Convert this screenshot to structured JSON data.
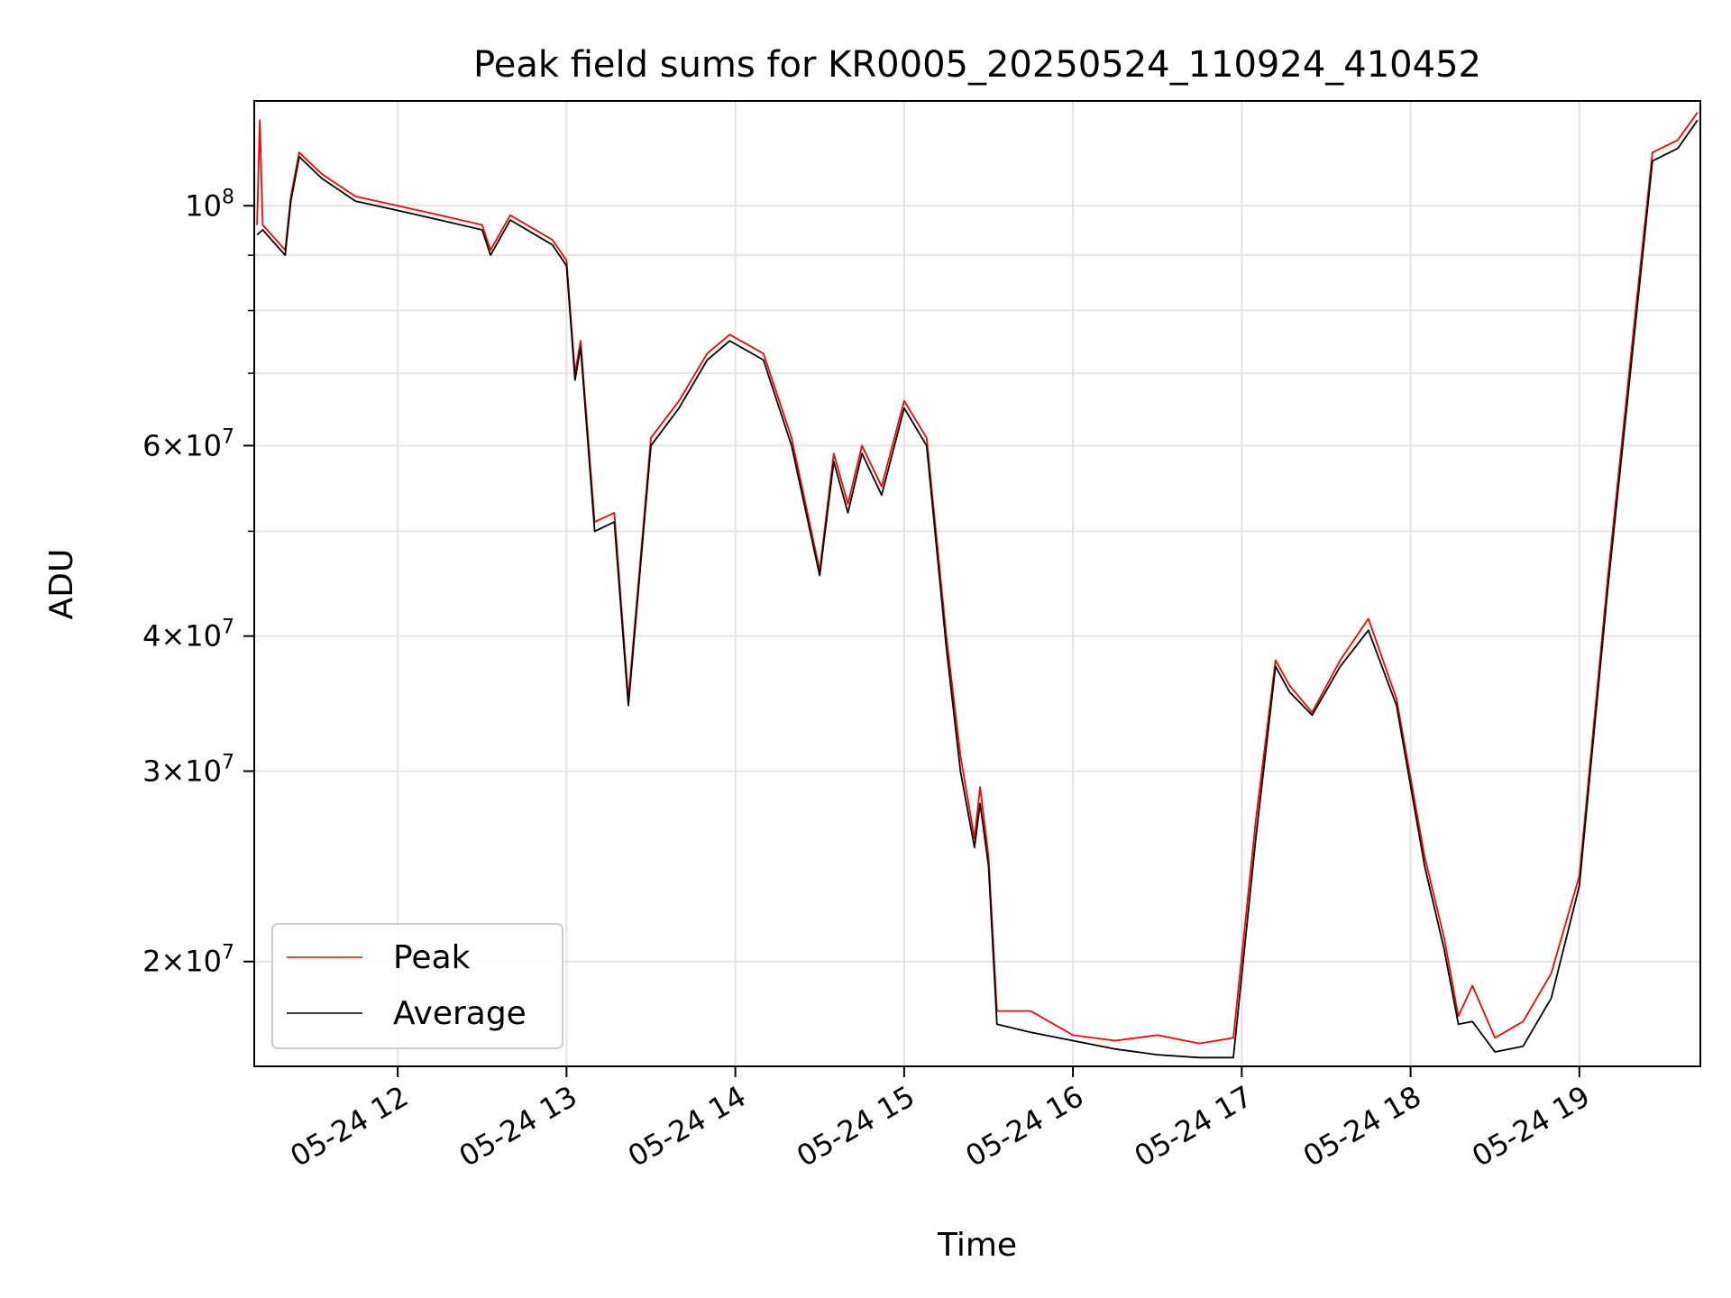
{
  "chart_data": {
    "type": "line",
    "title": "Peak field sums for KR0005_20250524_110924_410452",
    "xlabel": "Time",
    "ylabel": "ADU",
    "yscale": "log",
    "ylim": [
      16000000,
      125000000
    ],
    "xlim": [
      "2025-05-24 11:09",
      "2025-05-24 19:43"
    ],
    "grid": true,
    "legend_position": "lower-left",
    "x_ticks": [
      {
        "value": "2025-05-24 12:00",
        "label": "05-24 12"
      },
      {
        "value": "2025-05-24 13:00",
        "label": "05-24 13"
      },
      {
        "value": "2025-05-24 14:00",
        "label": "05-24 14"
      },
      {
        "value": "2025-05-24 15:00",
        "label": "05-24 15"
      },
      {
        "value": "2025-05-24 16:00",
        "label": "05-24 16"
      },
      {
        "value": "2025-05-24 17:00",
        "label": "05-24 17"
      },
      {
        "value": "2025-05-24 18:00",
        "label": "05-24 18"
      },
      {
        "value": "2025-05-24 19:00",
        "label": "05-24 19"
      }
    ],
    "y_ticks": [
      {
        "value": 20000000,
        "base": "2",
        "exp": "7"
      },
      {
        "value": 30000000,
        "base": "3",
        "exp": "7"
      },
      {
        "value": 40000000,
        "base": "4",
        "exp": "7"
      },
      {
        "value": 60000000,
        "base": "6",
        "exp": "7"
      },
      {
        "value": 100000000,
        "base": "",
        "exp": "8"
      }
    ],
    "y_minor_ticks": [
      50000000,
      70000000,
      80000000,
      90000000
    ],
    "colors": {
      "Peak": "#ff0000",
      "Average": "#000000"
    },
    "series": [
      {
        "name": "Peak",
        "points": [
          [
            "2025-05-24 11:10",
            96000000
          ],
          [
            "2025-05-24 11:11",
            120000000
          ],
          [
            "2025-05-24 11:12",
            96000000
          ],
          [
            "2025-05-24 11:20",
            91000000
          ],
          [
            "2025-05-24 11:22",
            102000000
          ],
          [
            "2025-05-24 11:25",
            112000000
          ],
          [
            "2025-05-24 11:33",
            107000000
          ],
          [
            "2025-05-24 11:45",
            102000000
          ],
          [
            "2025-05-24 12:00",
            100000000
          ],
          [
            "2025-05-24 12:15",
            98000000
          ],
          [
            "2025-05-24 12:30",
            96000000
          ],
          [
            "2025-05-24 12:33",
            91000000
          ],
          [
            "2025-05-24 12:40",
            98000000
          ],
          [
            "2025-05-24 12:55",
            93000000
          ],
          [
            "2025-05-24 13:00",
            89000000
          ],
          [
            "2025-05-24 13:03",
            70000000
          ],
          [
            "2025-05-24 13:05",
            75000000
          ],
          [
            "2025-05-24 13:10",
            51000000
          ],
          [
            "2025-05-24 13:17",
            52000000
          ],
          [
            "2025-05-24 13:22",
            35000000
          ],
          [
            "2025-05-24 13:30",
            61000000
          ],
          [
            "2025-05-24 13:40",
            66000000
          ],
          [
            "2025-05-24 13:50",
            73000000
          ],
          [
            "2025-05-24 13:58",
            76000000
          ],
          [
            "2025-05-24 14:10",
            73000000
          ],
          [
            "2025-05-24 14:20",
            61000000
          ],
          [
            "2025-05-24 14:30",
            46000000
          ],
          [
            "2025-05-24 14:35",
            59000000
          ],
          [
            "2025-05-24 14:40",
            53000000
          ],
          [
            "2025-05-24 14:45",
            60000000
          ],
          [
            "2025-05-24 14:52",
            55000000
          ],
          [
            "2025-05-24 15:00",
            66000000
          ],
          [
            "2025-05-24 15:08",
            61000000
          ],
          [
            "2025-05-24 15:15",
            40000000
          ],
          [
            "2025-05-24 15:20",
            31000000
          ],
          [
            "2025-05-24 15:25",
            26000000
          ],
          [
            "2025-05-24 15:27",
            29000000
          ],
          [
            "2025-05-24 15:30",
            25000000
          ],
          [
            "2025-05-24 15:33",
            18000000
          ],
          [
            "2025-05-24 15:45",
            18000000
          ],
          [
            "2025-05-24 16:00",
            17100000
          ],
          [
            "2025-05-24 16:15",
            16900000
          ],
          [
            "2025-05-24 16:30",
            17100000
          ],
          [
            "2025-05-24 16:45",
            16800000
          ],
          [
            "2025-05-24 16:57",
            17000000
          ],
          [
            "2025-05-24 17:05",
            27000000
          ],
          [
            "2025-05-24 17:12",
            38000000
          ],
          [
            "2025-05-24 17:17",
            36000000
          ],
          [
            "2025-05-24 17:25",
            34000000
          ],
          [
            "2025-05-24 17:35",
            38000000
          ],
          [
            "2025-05-24 17:45",
            41500000
          ],
          [
            "2025-05-24 17:55",
            35000000
          ],
          [
            "2025-05-24 18:05",
            25000000
          ],
          [
            "2025-05-24 18:12",
            21000000
          ],
          [
            "2025-05-24 18:17",
            17800000
          ],
          [
            "2025-05-24 18:22",
            19000000
          ],
          [
            "2025-05-24 18:30",
            17000000
          ],
          [
            "2025-05-24 18:40",
            17600000
          ],
          [
            "2025-05-24 18:50",
            19500000
          ],
          [
            "2025-05-24 19:00",
            24000000
          ],
          [
            "2025-05-24 19:10",
            45000000
          ],
          [
            "2025-05-24 19:20",
            80000000
          ],
          [
            "2025-05-24 19:26",
            112000000
          ],
          [
            "2025-05-24 19:35",
            115000000
          ],
          [
            "2025-05-24 19:42",
            122000000
          ]
        ]
      },
      {
        "name": "Average",
        "points": [
          [
            "2025-05-24 11:10",
            94000000
          ],
          [
            "2025-05-24 11:12",
            95000000
          ],
          [
            "2025-05-24 11:20",
            90000000
          ],
          [
            "2025-05-24 11:22",
            101000000
          ],
          [
            "2025-05-24 11:25",
            111000000
          ],
          [
            "2025-05-24 11:33",
            106000000
          ],
          [
            "2025-05-24 11:45",
            101000000
          ],
          [
            "2025-05-24 12:00",
            99000000
          ],
          [
            "2025-05-24 12:15",
            97000000
          ],
          [
            "2025-05-24 12:30",
            95000000
          ],
          [
            "2025-05-24 12:33",
            90000000
          ],
          [
            "2025-05-24 12:40",
            97000000
          ],
          [
            "2025-05-24 12:55",
            92000000
          ],
          [
            "2025-05-24 13:00",
            88000000
          ],
          [
            "2025-05-24 13:03",
            69000000
          ],
          [
            "2025-05-24 13:05",
            74000000
          ],
          [
            "2025-05-24 13:10",
            50000000
          ],
          [
            "2025-05-24 13:17",
            51000000
          ],
          [
            "2025-05-24 13:22",
            34500000
          ],
          [
            "2025-05-24 13:30",
            60000000
          ],
          [
            "2025-05-24 13:40",
            65000000
          ],
          [
            "2025-05-24 13:50",
            72000000
          ],
          [
            "2025-05-24 13:58",
            75000000
          ],
          [
            "2025-05-24 14:10",
            72000000
          ],
          [
            "2025-05-24 14:20",
            60000000
          ],
          [
            "2025-05-24 14:30",
            45500000
          ],
          [
            "2025-05-24 14:35",
            58000000
          ],
          [
            "2025-05-24 14:40",
            52000000
          ],
          [
            "2025-05-24 14:45",
            59000000
          ],
          [
            "2025-05-24 14:52",
            54000000
          ],
          [
            "2025-05-24 15:00",
            65000000
          ],
          [
            "2025-05-24 15:08",
            60000000
          ],
          [
            "2025-05-24 15:15",
            39000000
          ],
          [
            "2025-05-24 15:20",
            30000000
          ],
          [
            "2025-05-24 15:25",
            25500000
          ],
          [
            "2025-05-24 15:27",
            28000000
          ],
          [
            "2025-05-24 15:30",
            24500000
          ],
          [
            "2025-05-24 15:33",
            17500000
          ],
          [
            "2025-05-24 15:45",
            17200000
          ],
          [
            "2025-05-24 16:00",
            16900000
          ],
          [
            "2025-05-24 16:15",
            16600000
          ],
          [
            "2025-05-24 16:30",
            16400000
          ],
          [
            "2025-05-24 16:45",
            16300000
          ],
          [
            "2025-05-24 16:57",
            16300000
          ],
          [
            "2025-05-24 17:05",
            26000000
          ],
          [
            "2025-05-24 17:12",
            37500000
          ],
          [
            "2025-05-24 17:17",
            35500000
          ],
          [
            "2025-05-24 17:25",
            33800000
          ],
          [
            "2025-05-24 17:35",
            37500000
          ],
          [
            "2025-05-24 17:45",
            40500000
          ],
          [
            "2025-05-24 17:55",
            34500000
          ],
          [
            "2025-05-24 18:05",
            24500000
          ],
          [
            "2025-05-24 18:12",
            20500000
          ],
          [
            "2025-05-24 18:17",
            17500000
          ],
          [
            "2025-05-24 18:22",
            17600000
          ],
          [
            "2025-05-24 18:30",
            16500000
          ],
          [
            "2025-05-24 18:40",
            16700000
          ],
          [
            "2025-05-24 18:50",
            18500000
          ],
          [
            "2025-05-24 19:00",
            23500000
          ],
          [
            "2025-05-24 19:10",
            44000000
          ],
          [
            "2025-05-24 19:20",
            78000000
          ],
          [
            "2025-05-24 19:26",
            110000000
          ],
          [
            "2025-05-24 19:35",
            113000000
          ],
          [
            "2025-05-24 19:42",
            120000000
          ]
        ]
      }
    ]
  }
}
